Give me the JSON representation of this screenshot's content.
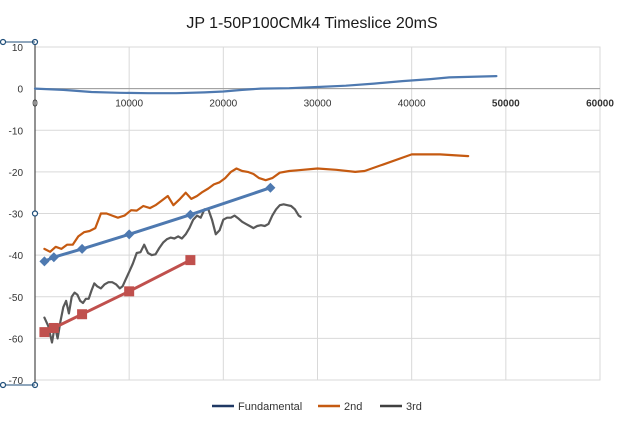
{
  "chart_data": {
    "type": "line",
    "title": "JP 1-50P100CMk4 Timeslice 20mS",
    "xlabel": "",
    "ylabel": "",
    "xlim": [
      0,
      60000
    ],
    "ylim": [
      -70,
      10
    ],
    "x_ticks": [
      {
        "value": 0,
        "label": "0"
      },
      {
        "value": 10000,
        "label": "10000"
      },
      {
        "value": 20000,
        "label": "20000"
      },
      {
        "value": 30000,
        "label": "30000"
      },
      {
        "value": 40000,
        "label": "40000"
      },
      {
        "value": 50000,
        "label": "50000"
      },
      {
        "value": 60000,
        "label": "60000"
      }
    ],
    "y_ticks": [
      {
        "value": 10,
        "label": "10"
      },
      {
        "value": 0,
        "label": "0"
      },
      {
        "value": -10,
        "label": "-10"
      },
      {
        "value": -20,
        "label": "-20"
      },
      {
        "value": -30,
        "label": "-30"
      },
      {
        "value": -40,
        "label": "-40"
      },
      {
        "value": -50,
        "label": "-50"
      },
      {
        "value": -60,
        "label": "-60"
      },
      {
        "value": -70,
        "label": "-70"
      }
    ],
    "grid": true,
    "legend_position": "bottom",
    "legend": [
      {
        "name": "Fundamental",
        "color": "#1f3864"
      },
      {
        "name": "2nd",
        "color": "#c55a11"
      },
      {
        "name": "3rd",
        "color": "#404040"
      }
    ],
    "series": [
      {
        "name": "Fundamental",
        "color": "#4e79b0",
        "points": [
          [
            0,
            0
          ],
          [
            3000,
            -0.3
          ],
          [
            6000,
            -0.8
          ],
          [
            9000,
            -1.0
          ],
          [
            12000,
            -1.1
          ],
          [
            15000,
            -1.1
          ],
          [
            18000,
            -0.9
          ],
          [
            20000,
            -0.7
          ],
          [
            22000,
            -0.3
          ],
          [
            24000,
            0
          ],
          [
            27000,
            0.1
          ],
          [
            30000,
            0.4
          ],
          [
            33000,
            0.7
          ],
          [
            36000,
            1.2
          ],
          [
            39000,
            1.8
          ],
          [
            42000,
            2.3
          ],
          [
            44000,
            2.7
          ],
          [
            47000,
            2.9
          ],
          [
            49000,
            3.0
          ]
        ]
      },
      {
        "name": "2nd",
        "color": "#c55a11",
        "points": [
          [
            1000,
            -38.5
          ],
          [
            1600,
            -39.2
          ],
          [
            2200,
            -38
          ],
          [
            2800,
            -38.5
          ],
          [
            3400,
            -37.5
          ],
          [
            4000,
            -37.5
          ],
          [
            4600,
            -35.5
          ],
          [
            5200,
            -34.5
          ],
          [
            5800,
            -34.2
          ],
          [
            6400,
            -33.5
          ],
          [
            7000,
            -30
          ],
          [
            7600,
            -30
          ],
          [
            8200,
            -30.5
          ],
          [
            8800,
            -31
          ],
          [
            9500,
            -30.5
          ],
          [
            10200,
            -29.2
          ],
          [
            10800,
            -29.3
          ],
          [
            11500,
            -28.2
          ],
          [
            12200,
            -28.7
          ],
          [
            12800,
            -28
          ],
          [
            13400,
            -27
          ],
          [
            14100,
            -25.8
          ],
          [
            14700,
            -28
          ],
          [
            15400,
            -26.5
          ],
          [
            16000,
            -25
          ],
          [
            16600,
            -26.5
          ],
          [
            17200,
            -25.8
          ],
          [
            17800,
            -24.8
          ],
          [
            18400,
            -24
          ],
          [
            19000,
            -23
          ],
          [
            19600,
            -22.5
          ],
          [
            20200,
            -21.5
          ],
          [
            20800,
            -20
          ],
          [
            21400,
            -19.2
          ],
          [
            22000,
            -19.8
          ],
          [
            22600,
            -20
          ],
          [
            23200,
            -20.5
          ],
          [
            23800,
            -21.5
          ],
          [
            24500,
            -22
          ],
          [
            25200,
            -21.5
          ],
          [
            26000,
            -20.2
          ],
          [
            27000,
            -19.8
          ],
          [
            28000,
            -19.6
          ],
          [
            30000,
            -19.2
          ],
          [
            32000,
            -19.5
          ],
          [
            34000,
            -20
          ],
          [
            35000,
            -19.8
          ],
          [
            37000,
            -18.2
          ],
          [
            40000,
            -15.8
          ],
          [
            43000,
            -15.8
          ],
          [
            46000,
            -16.2
          ]
        ]
      },
      {
        "name": "3rd",
        "color": "#595959",
        "points": [
          [
            1000,
            -55
          ],
          [
            1400,
            -57
          ],
          [
            1800,
            -61
          ],
          [
            2100,
            -57
          ],
          [
            2400,
            -60
          ],
          [
            2700,
            -56
          ],
          [
            3000,
            -52.5
          ],
          [
            3300,
            -51
          ],
          [
            3600,
            -54
          ],
          [
            3900,
            -50
          ],
          [
            4200,
            -49
          ],
          [
            4500,
            -49.5
          ],
          [
            4800,
            -51
          ],
          [
            5100,
            -51.5
          ],
          [
            5400,
            -50.5
          ],
          [
            5700,
            -50.5
          ],
          [
            6000,
            -48.5
          ],
          [
            6300,
            -46.8
          ],
          [
            6600,
            -47.5
          ],
          [
            7000,
            -48
          ],
          [
            7400,
            -47
          ],
          [
            7800,
            -46.5
          ],
          [
            8200,
            -46.5
          ],
          [
            8600,
            -47
          ],
          [
            9000,
            -48
          ],
          [
            9300,
            -47.5
          ],
          [
            9600,
            -46
          ],
          [
            10000,
            -44
          ],
          [
            10400,
            -42
          ],
          [
            10800,
            -39.5
          ],
          [
            11200,
            -39.3
          ],
          [
            11600,
            -37.5
          ],
          [
            12000,
            -39.5
          ],
          [
            12400,
            -40
          ],
          [
            12800,
            -39.8
          ],
          [
            13200,
            -38.3
          ],
          [
            13600,
            -37
          ],
          [
            14000,
            -36.2
          ],
          [
            14400,
            -35.8
          ],
          [
            14800,
            -36
          ],
          [
            15200,
            -35.5
          ],
          [
            15600,
            -36
          ],
          [
            16000,
            -35
          ],
          [
            16400,
            -33.5
          ],
          [
            16800,
            -31.5
          ],
          [
            17200,
            -30.5
          ],
          [
            17600,
            -31
          ],
          [
            18000,
            -29
          ],
          [
            18400,
            -29
          ],
          [
            18800,
            -31.5
          ],
          [
            19200,
            -35
          ],
          [
            19600,
            -34
          ],
          [
            20000,
            -31.5
          ],
          [
            20400,
            -31
          ],
          [
            20800,
            -31
          ],
          [
            21200,
            -30.5
          ],
          [
            21600,
            -31.2
          ],
          [
            22000,
            -32
          ],
          [
            22400,
            -32.5
          ],
          [
            22800,
            -33
          ],
          [
            23200,
            -33.5
          ],
          [
            23600,
            -33
          ],
          [
            24000,
            -32.8
          ],
          [
            24400,
            -33
          ],
          [
            24800,
            -32.5
          ],
          [
            25200,
            -30.5
          ],
          [
            25600,
            -29
          ],
          [
            26000,
            -28
          ],
          [
            26400,
            -27.8
          ],
          [
            26800,
            -28
          ],
          [
            27200,
            -28.2
          ],
          [
            27600,
            -29
          ],
          [
            28000,
            -30.5
          ],
          [
            28200,
            -30.8
          ]
        ]
      },
      {
        "name": "",
        "color": "#4e79b0",
        "marker": "diamond",
        "points": [
          [
            1000,
            -41.5
          ],
          [
            2000,
            -40.5
          ],
          [
            5000,
            -38.5
          ],
          [
            10000,
            -35
          ],
          [
            16500,
            -30.3
          ],
          [
            25000,
            -23.8
          ]
        ]
      },
      {
        "name": "",
        "color": "#c0504d",
        "marker": "square",
        "points": [
          [
            1000,
            -58.5
          ],
          [
            2000,
            -57.5
          ],
          [
            5000,
            -54.2
          ],
          [
            10000,
            -48.7
          ],
          [
            16500,
            -41.2
          ]
        ]
      }
    ]
  }
}
